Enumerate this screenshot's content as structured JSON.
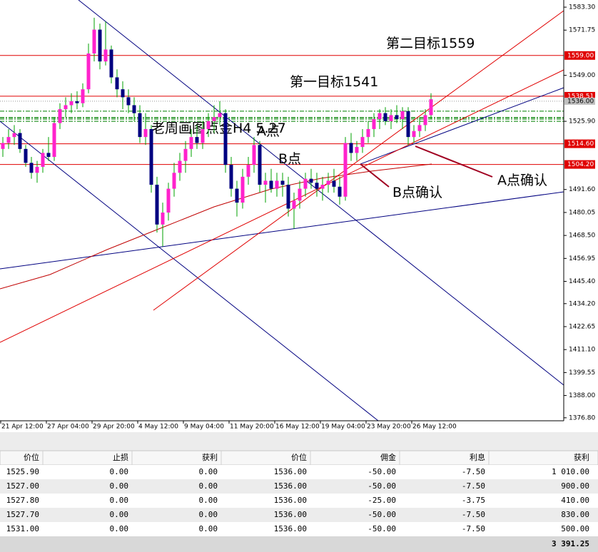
{
  "chart_data": {
    "type": "candlestick",
    "candles": [
      [
        1512,
        1518,
        1508,
        1515
      ],
      [
        1515,
        1522,
        1512,
        1518
      ],
      [
        1518,
        1524,
        1514,
        1520
      ],
      [
        1520,
        1522,
        1510,
        1512
      ],
      [
        1512,
        1514,
        1503,
        1505
      ],
      [
        1505,
        1508,
        1497,
        1500
      ],
      [
        1500,
        1506,
        1495,
        1503
      ],
      [
        1503,
        1512,
        1500,
        1510
      ],
      [
        1510,
        1518,
        1506,
        1508
      ],
      [
        1508,
        1528,
        1506,
        1525
      ],
      [
        1525,
        1535,
        1522,
        1532
      ],
      [
        1532,
        1538,
        1528,
        1534
      ],
      [
        1534,
        1540,
        1530,
        1536
      ],
      [
        1536,
        1541,
        1532,
        1535
      ],
      [
        1535,
        1545,
        1533,
        1542
      ],
      [
        1542,
        1565,
        1540,
        1560
      ],
      [
        1560,
        1578,
        1556,
        1572
      ],
      [
        1572,
        1575,
        1552,
        1556
      ],
      [
        1556,
        1576,
        1554,
        1562
      ],
      [
        1562,
        1564,
        1545,
        1548
      ],
      [
        1548,
        1552,
        1538,
        1542
      ],
      [
        1542,
        1546,
        1532,
        1538
      ],
      [
        1538,
        1542,
        1530,
        1534
      ],
      [
        1534,
        1538,
        1526,
        1530
      ],
      [
        1530,
        1534,
        1515,
        1518
      ],
      [
        1518,
        1530,
        1514,
        1522
      ],
      [
        1522,
        1524,
        1490,
        1494
      ],
      [
        1494,
        1498,
        1470,
        1474
      ],
      [
        1474,
        1485,
        1463,
        1480
      ],
      [
        1480,
        1495,
        1476,
        1492
      ],
      [
        1492,
        1505,
        1488,
        1500
      ],
      [
        1500,
        1510,
        1496,
        1506
      ],
      [
        1506,
        1516,
        1500,
        1512
      ],
      [
        1512,
        1522,
        1508,
        1518
      ],
      [
        1518,
        1524,
        1512,
        1515
      ],
      [
        1515,
        1526,
        1512,
        1522
      ],
      [
        1522,
        1530,
        1518,
        1526
      ],
      [
        1526,
        1534,
        1520,
        1528
      ],
      [
        1528,
        1536,
        1524,
        1530
      ],
      [
        1530,
        1532,
        1500,
        1504
      ],
      [
        1504,
        1508,
        1488,
        1492
      ],
      [
        1492,
        1496,
        1478,
        1485
      ],
      [
        1485,
        1502,
        1482,
        1498
      ],
      [
        1498,
        1508,
        1494,
        1504
      ],
      [
        1504,
        1518,
        1500,
        1514
      ],
      [
        1514,
        1516,
        1490,
        1494
      ],
      [
        1494,
        1500,
        1485,
        1496
      ],
      [
        1496,
        1502,
        1490,
        1492
      ],
      [
        1492,
        1500,
        1488,
        1496
      ],
      [
        1496,
        1500,
        1488,
        1494
      ],
      [
        1494,
        1498,
        1478,
        1482
      ],
      [
        1482,
        1490,
        1472,
        1486
      ],
      [
        1486,
        1496,
        1482,
        1492
      ],
      [
        1492,
        1500,
        1488,
        1497
      ],
      [
        1497,
        1502,
        1492,
        1495
      ],
      [
        1495,
        1500,
        1488,
        1492
      ],
      [
        1492,
        1498,
        1486,
        1494
      ],
      [
        1494,
        1500,
        1490,
        1496
      ],
      [
        1496,
        1502,
        1490,
        1493
      ],
      [
        1493,
        1498,
        1484,
        1488
      ],
      [
        1488,
        1518,
        1486,
        1515
      ],
      [
        1515,
        1520,
        1506,
        1510
      ],
      [
        1510,
        1516,
        1506,
        1513
      ],
      [
        1513,
        1522,
        1510,
        1518
      ],
      [
        1518,
        1526,
        1515,
        1522
      ],
      [
        1522,
        1530,
        1518,
        1527
      ],
      [
        1527,
        1532,
        1522,
        1530
      ],
      [
        1530,
        1533,
        1524,
        1526
      ],
      [
        1526,
        1532,
        1522,
        1529
      ],
      [
        1529,
        1534,
        1525,
        1527
      ],
      [
        1527,
        1533,
        1522,
        1531
      ],
      [
        1531,
        1533,
        1514,
        1518
      ],
      [
        1518,
        1524,
        1515,
        1521
      ],
      [
        1521,
        1528,
        1518,
        1524
      ],
      [
        1524,
        1532,
        1521,
        1529
      ],
      [
        1529,
        1540,
        1527,
        1537
      ]
    ],
    "ylim": [
      1375.3,
      1586.9
    ],
    "yticks": [
      {
        "value": 1583.3,
        "label": "1583.30"
      },
      {
        "value": 1571.75,
        "label": "1571.75"
      },
      {
        "value": 1549,
        "label": "1549.00"
      },
      {
        "value": 1525.9,
        "label": "1525.90"
      },
      {
        "value": 1491.6,
        "label": "1491.60"
      },
      {
        "value": 1480.05,
        "label": "1480.05"
      },
      {
        "value": 1468.5,
        "label": "1468.50"
      },
      {
        "value": 1456.95,
        "label": "1456.95"
      },
      {
        "value": 1445.4,
        "label": "1445.40"
      },
      {
        "value": 1434.2,
        "label": "1434.20"
      },
      {
        "value": 1422.65,
        "label": "1422.65"
      },
      {
        "value": 1411.1,
        "label": "1411.10"
      },
      {
        "value": 1399.55,
        "label": "1399.55"
      },
      {
        "value": 1388,
        "label": "1388.00"
      },
      {
        "value": 1376.8,
        "label": "1376.80"
      }
    ],
    "xticks": [
      {
        "value": 0,
        "label": "21 Apr 12:00"
      },
      {
        "value": 8,
        "label": "27 Apr 04:00"
      },
      {
        "value": 16,
        "label": "29 Apr 20:00"
      },
      {
        "value": 24,
        "label": "4 May 12:00"
      },
      {
        "value": 32,
        "label": "9 May 04:00"
      },
      {
        "value": 40,
        "label": "11 May 20:00"
      },
      {
        "value": 48,
        "label": "16 May 12:00"
      },
      {
        "value": 56,
        "label": "19 May 04:00"
      },
      {
        "value": 64,
        "label": "23 May 20:00"
      },
      {
        "value": 72,
        "label": "26 May 12:00"
      }
    ],
    "levels": [
      {
        "value": 1559,
        "label": "1559.00"
      },
      {
        "value": 1538.51,
        "label": "1538.51"
      },
      {
        "value": 1514.6,
        "label": "1514.60"
      },
      {
        "value": 1504.2,
        "label": "1504.20"
      }
    ],
    "level_color": "#e00000",
    "bid": {
      "value": 1536,
      "label": "1536.00"
    },
    "bull_color": "#ff22cc",
    "bear_color": "#000080",
    "wick_color": "#00a000",
    "order_line_color": "#008000",
    "annotations": [
      "第二目标1559",
      "第一目标1541",
      "老周画图点金H4 5.27",
      "A点",
      "B点",
      "A点确认",
      "B点确认"
    ]
  },
  "table": {
    "header": [
      "价位",
      "止损",
      "获利",
      "价位",
      "佣金",
      "利息",
      "获利"
    ],
    "rows": [
      [
        "1525.90",
        "0.00",
        "0.00",
        "1536.00",
        "-50.00",
        "-7.50",
        "1 010.00"
      ],
      [
        "1527.00",
        "0.00",
        "0.00",
        "1536.00",
        "-50.00",
        "-7.50",
        "900.00"
      ],
      [
        "1527.80",
        "0.00",
        "0.00",
        "1536.00",
        "-25.00",
        "-3.75",
        "410.00"
      ],
      [
        "1527.70",
        "0.00",
        "0.00",
        "1536.00",
        "-50.00",
        "-7.50",
        "830.00"
      ],
      [
        "1531.00",
        "0.00",
        "0.00",
        "1536.00",
        "-50.00",
        "-7.50",
        "500.00"
      ]
    ],
    "total": "3 391.25"
  }
}
